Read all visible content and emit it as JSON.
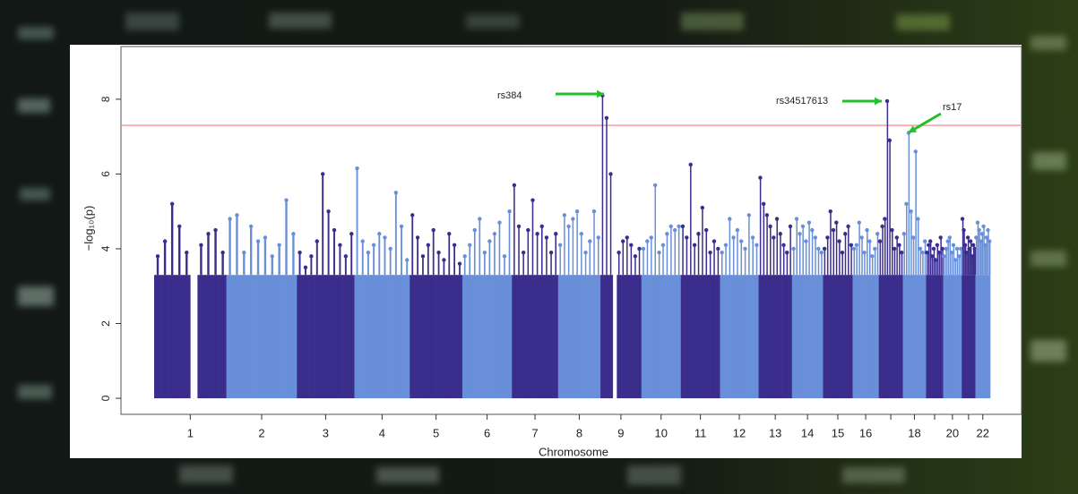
{
  "chart_data": {
    "type": "manhattan",
    "xlabel": "Chromosome",
    "ylabel": "−log₁₀(p)",
    "categories": [
      "1",
      "2",
      "3",
      "4",
      "5",
      "6",
      "7",
      "8",
      "9",
      "10",
      "11",
      "12",
      "13",
      "14",
      "15",
      "16",
      null,
      "18",
      null,
      "20",
      null,
      "22"
    ],
    "lengths": [
      249,
      243,
      198,
      191,
      181,
      171,
      159,
      146,
      141,
      136,
      135,
      133,
      115,
      107,
      102,
      90,
      83,
      80,
      59,
      64,
      47,
      51
    ],
    "values": [
      [
        3.8,
        4.2,
        5.2,
        4.6,
        3.9,
        null,
        4.1,
        4.4,
        4.5,
        3.9
      ],
      [
        4.8,
        4.9,
        3.9,
        4.6,
        4.2,
        4.3,
        3.8,
        4.1,
        5.3,
        4.4
      ],
      [
        3.9,
        3.5,
        3.8,
        4.2,
        6.0,
        5.0,
        4.5,
        4.1,
        3.8,
        4.4
      ],
      [
        6.15,
        4.2,
        3.9,
        4.1,
        4.4,
        4.3,
        4.0,
        5.5,
        4.6,
        3.7
      ],
      [
        4.9,
        4.3,
        3.8,
        4.1,
        4.5,
        3.9,
        3.7,
        4.4,
        4.1,
        3.6
      ],
      [
        3.8,
        4.1,
        4.5,
        4.8,
        3.9,
        4.2,
        4.4,
        4.7,
        3.8,
        5.0
      ],
      [
        5.7,
        4.6,
        3.9,
        4.5,
        5.3,
        4.4,
        4.6,
        4.3,
        3.9,
        4.4
      ],
      [
        4.1,
        4.9,
        4.6,
        4.8,
        5.0,
        4.4,
        3.9,
        4.2,
        5.0,
        4.3
      ],
      [
        8.1,
        7.5,
        6.0,
        null,
        3.9,
        4.2,
        4.3,
        4.1,
        3.8,
        4.0
      ],
      [
        4.0,
        4.2,
        4.3,
        5.7,
        3.9,
        4.1,
        4.4,
        4.6,
        4.5,
        4.6
      ],
      [
        4.6,
        4.3,
        6.25,
        4.1,
        4.4,
        5.1,
        4.5,
        3.9,
        4.2,
        4.0
      ],
      [
        3.9,
        4.1,
        4.8,
        4.3,
        4.5,
        4.2,
        4.0,
        4.9,
        4.3,
        4.1
      ],
      [
        5.9,
        5.2,
        4.9,
        4.6,
        4.3,
        4.8,
        4.4,
        4.1,
        3.9,
        4.6
      ],
      [
        4.0,
        4.8,
        4.4,
        4.6,
        4.2,
        4.7,
        4.5,
        4.3,
        4.0,
        3.9
      ],
      [
        4.0,
        4.3,
        5.0,
        4.5,
        4.7,
        4.2,
        3.9,
        4.4,
        4.6,
        4.1
      ],
      [
        4.0,
        4.1,
        4.7,
        4.3,
        3.9,
        4.5,
        4.2,
        3.8,
        4.0,
        4.4
      ],
      [
        4.2,
        4.6,
        4.8,
        7.95,
        6.9,
        4.5,
        4.0,
        4.3,
        4.1,
        3.9
      ],
      [
        4.4,
        5.2,
        7.1,
        5.0,
        4.3,
        6.6,
        4.8,
        4.0,
        3.9,
        4.2
      ],
      [
        3.9,
        4.1,
        4.2,
        3.8,
        4.0,
        3.7,
        4.1,
        3.9,
        4.3,
        4.0
      ],
      [
        3.8,
        4.0,
        4.2,
        4.3,
        3.9,
        4.1,
        3.7,
        4.0,
        3.8,
        4.0
      ],
      [
        4.8,
        4.5,
        4.1,
        3.9,
        4.3,
        4.0,
        4.2,
        3.8,
        4.1,
        4.0
      ],
      [
        4.3,
        4.7,
        4.5,
        4.2,
        4.4,
        4.6,
        4.1,
        4.3,
        4.5,
        4.2
      ]
    ],
    "colors": [
      "#3b2d8c",
      "#6a8fd9"
    ],
    "threshold": 7.3,
    "threshold_color": "#f28b8b",
    "ylim": [
      -0.43,
      9.41
    ],
    "yticks": [
      0,
      2,
      4,
      6,
      8
    ],
    "annotations": [
      "rs384",
      "rs34517613",
      "rs17"
    ],
    "annotation_color": "#22c02a"
  }
}
